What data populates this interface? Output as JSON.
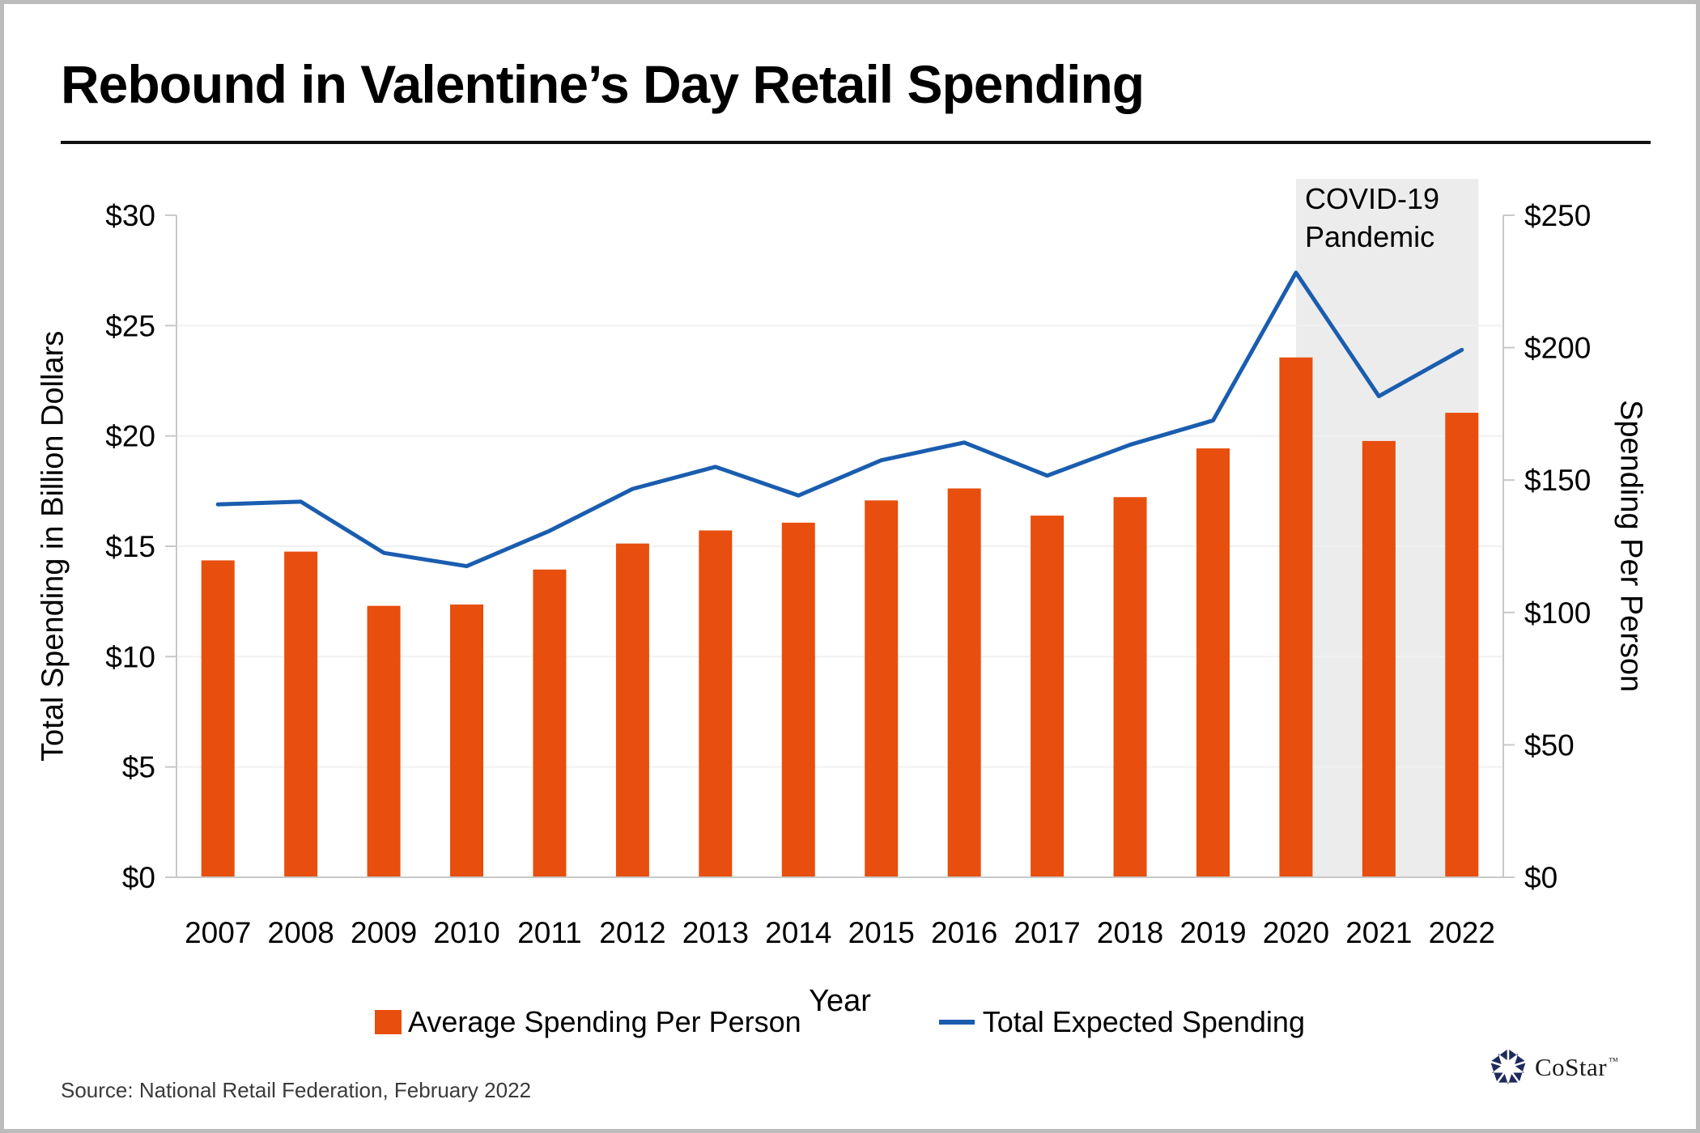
{
  "header": {
    "title": "Rebound in Valentine’s Day Retail Spending"
  },
  "chart_data": {
    "type": "bar",
    "subtype": "combo-bar-line-dual-axis",
    "categories": [
      "2007",
      "2008",
      "2009",
      "2010",
      "2011",
      "2012",
      "2013",
      "2014",
      "2015",
      "2016",
      "2017",
      "2018",
      "2019",
      "2020",
      "2021",
      "2022"
    ],
    "xlabel": "Year",
    "series": [
      {
        "name": "Average Spending Per Person",
        "type": "bar",
        "axis": "right",
        "color": "#E84E0D",
        "values": [
          119.67,
          122.98,
          102.5,
          103.0,
          116.21,
          126.03,
          130.97,
          133.91,
          142.31,
          146.84,
          136.57,
          143.56,
          161.96,
          196.31,
          164.76,
          175.41
        ]
      },
      {
        "name": "Total Expected Spending",
        "type": "line",
        "axis": "left",
        "color": "#1A5DAF",
        "values": [
          16.9,
          17.02,
          14.7,
          14.1,
          15.7,
          17.6,
          18.6,
          17.3,
          18.9,
          19.7,
          18.2,
          19.6,
          20.7,
          27.4,
          21.8,
          23.9
        ]
      }
    ],
    "left_axis": {
      "title": "Total Spending in Billion Dollars",
      "min": 0,
      "max": 30,
      "step": 5,
      "prefix": "$"
    },
    "right_axis": {
      "title": "Spending Per Person",
      "min": 0,
      "max": 250,
      "step": 50,
      "prefix": "$"
    },
    "grid": {
      "horizontal": [
        5,
        10,
        15,
        20,
        25
      ]
    },
    "annotation": {
      "label_lines": [
        "COVID-19",
        "Pandemic"
      ],
      "from_category": "2020",
      "to_category": "2022",
      "fill": "#ECECEC"
    },
    "axis_line_color": "#C8C8C8",
    "gridline_color": "#F1F1F1"
  },
  "legend": {
    "items": [
      {
        "label": "Average Spending Per Person",
        "swatch": "square",
        "color": "#E84E0D"
      },
      {
        "label": "Total Expected Spending",
        "swatch": "line",
        "color": "#1A5DAF"
      }
    ]
  },
  "footer": {
    "source": "Source: National Retail Federation, February 2022",
    "brand": {
      "name": "CoStar",
      "tm": "™",
      "color": "#1E2A5C"
    }
  }
}
